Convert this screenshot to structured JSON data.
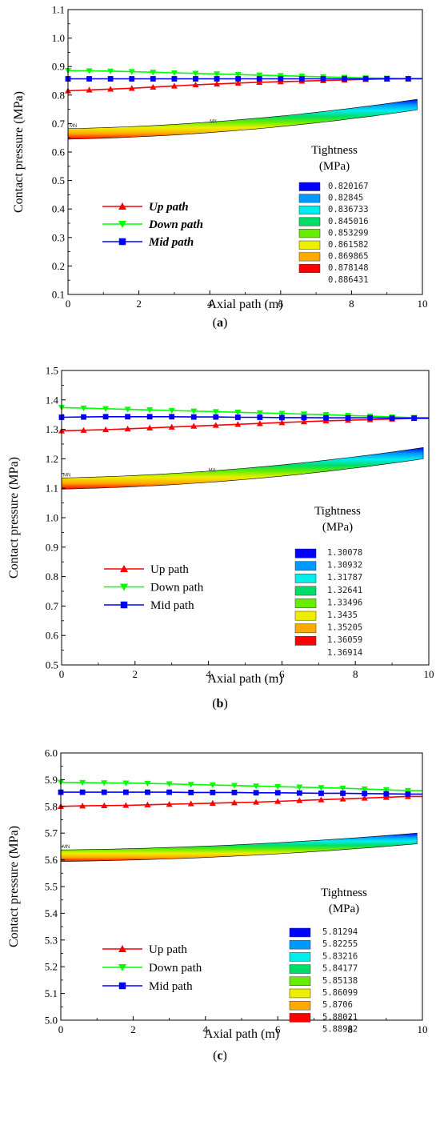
{
  "chart_data": [
    {
      "type": "line",
      "caption": "(a)",
      "caption_letter": "a",
      "xlabel": "Axial  path (m)",
      "ylabel": "Contact pressure (MPa)",
      "xlim": [
        0,
        10
      ],
      "ylim": [
        0.1,
        1.1
      ],
      "xticks": [
        "0",
        "2",
        "4",
        "6",
        "8",
        "10"
      ],
      "yticks": [
        "0.1",
        "0.2",
        "0.3",
        "0.4",
        "0.5",
        "0.6",
        "0.7",
        "0.8",
        "0.9",
        "1.0",
        "1.1"
      ],
      "legend_style": "bold-italic",
      "series": [
        {
          "name": "Up path",
          "color": "#ff0000",
          "marker": "triangle-up",
          "x": [
            0,
            0.6,
            1.2,
            1.8,
            2.4,
            3.0,
            3.6,
            4.2,
            4.8,
            5.4,
            6.0,
            6.6,
            7.2,
            7.8,
            8.4,
            9.0,
            9.6
          ],
          "y": [
            0.815,
            0.818,
            0.821,
            0.824,
            0.828,
            0.832,
            0.836,
            0.839,
            0.842,
            0.845,
            0.847,
            0.849,
            0.851,
            0.853,
            0.855,
            0.857,
            0.858
          ]
        },
        {
          "name": "Down path",
          "color": "#00ff00",
          "marker": "triangle-down",
          "x": [
            0,
            0.6,
            1.2,
            1.8,
            2.4,
            3.0,
            3.6,
            4.2,
            4.8,
            5.4,
            6.0,
            6.6,
            7.2,
            7.8,
            8.4,
            9.0,
            9.6
          ],
          "y": [
            0.886,
            0.885,
            0.884,
            0.882,
            0.88,
            0.878,
            0.876,
            0.874,
            0.872,
            0.87,
            0.868,
            0.866,
            0.864,
            0.862,
            0.86,
            0.859,
            0.858
          ]
        },
        {
          "name": "Mid path",
          "color": "#0000ff",
          "marker": "square",
          "x": [
            0,
            0.6,
            1.2,
            1.8,
            2.4,
            3.0,
            3.6,
            4.2,
            4.8,
            5.4,
            6.0,
            6.6,
            7.2,
            7.8,
            8.4,
            9.0,
            9.6
          ],
          "y": [
            0.857,
            0.857,
            0.857,
            0.857,
            0.857,
            0.857,
            0.857,
            0.857,
            0.857,
            0.857,
            0.857,
            0.857,
            0.857,
            0.857,
            0.857,
            0.857,
            0.857
          ]
        }
      ],
      "contour_band": {
        "x0": 0,
        "x1": 9.85,
        "top_start": 0.682,
        "top_end": 0.785,
        "bottom_start": 0.645,
        "bottom_end": 0.748,
        "label": "MN",
        "label2": "MX"
      },
      "contour_legend": {
        "title_line1": "Tightness",
        "title_line2": "(MPa)",
        "values": [
          "0.820167",
          "0.82845",
          "0.836733",
          "0.845016",
          "0.853299",
          "0.861582",
          "0.869865",
          "0.878148",
          "0.886431"
        ],
        "colors": [
          "#0000ff",
          "#0099ff",
          "#00eeee",
          "#00dd66",
          "#66ee00",
          "#eeee00",
          "#ffaa00",
          "#ff0000"
        ]
      }
    },
    {
      "type": "line",
      "caption": "(b)",
      "caption_letter": "b",
      "xlabel": "Axial  path (m)",
      "ylabel": "Contact pressure (MPa)",
      "xlim": [
        0,
        10
      ],
      "ylim": [
        0.5,
        1.5
      ],
      "xticks": [
        "0",
        "2",
        "4",
        "6",
        "8",
        "10"
      ],
      "yticks": [
        "0.5",
        "0.6",
        "0.7",
        "0.8",
        "0.9",
        "1.0",
        "1.1",
        "1.2",
        "1.3",
        "1.4",
        "1.5"
      ],
      "legend_style": "normal",
      "series": [
        {
          "name": "Up path",
          "color": "#ff0000",
          "marker": "triangle-up",
          "x": [
            0,
            0.6,
            1.2,
            1.8,
            2.4,
            3.0,
            3.6,
            4.2,
            4.8,
            5.4,
            6.0,
            6.6,
            7.2,
            7.8,
            8.4,
            9.0,
            9.6
          ],
          "y": [
            1.295,
            1.297,
            1.299,
            1.302,
            1.305,
            1.308,
            1.311,
            1.314,
            1.317,
            1.32,
            1.323,
            1.326,
            1.329,
            1.331,
            1.333,
            1.335,
            1.337
          ]
        },
        {
          "name": "Down path",
          "color": "#00ff00",
          "marker": "triangle-down",
          "x": [
            0,
            0.6,
            1.2,
            1.8,
            2.4,
            3.0,
            3.6,
            4.2,
            4.8,
            5.4,
            6.0,
            6.6,
            7.2,
            7.8,
            8.4,
            9.0,
            9.6
          ],
          "y": [
            1.374,
            1.372,
            1.37,
            1.368,
            1.366,
            1.364,
            1.362,
            1.36,
            1.358,
            1.356,
            1.354,
            1.352,
            1.35,
            1.347,
            1.345,
            1.342,
            1.34
          ]
        },
        {
          "name": "Mid path",
          "color": "#0000ff",
          "marker": "square",
          "x": [
            0,
            0.6,
            1.2,
            1.8,
            2.4,
            3.0,
            3.6,
            4.2,
            4.8,
            5.4,
            6.0,
            6.6,
            7.2,
            7.8,
            8.4,
            9.0,
            9.6
          ],
          "y": [
            1.341,
            1.342,
            1.343,
            1.343,
            1.343,
            1.343,
            1.342,
            1.342,
            1.341,
            1.341,
            1.34,
            1.34,
            1.339,
            1.339,
            1.339,
            1.338,
            1.338
          ]
        }
      ],
      "contour_band": {
        "x0": 0,
        "x1": 9.85,
        "top_start": 1.135,
        "top_end": 1.238,
        "bottom_start": 1.097,
        "bottom_end": 1.2,
        "label": "MN",
        "label2": "MX"
      },
      "contour_legend": {
        "title_line1": "Tightness",
        "title_line2": "(MPa)",
        "values": [
          "1.30078",
          "1.30932",
          "1.31787",
          "1.32641",
          "1.33496",
          "1.3435",
          "1.35205",
          "1.36059",
          "1.36914"
        ],
        "colors": [
          "#0000ff",
          "#0099ff",
          "#00eeee",
          "#00dd66",
          "#66ee00",
          "#eeee00",
          "#ffaa00",
          "#ff0000"
        ]
      }
    },
    {
      "type": "line",
      "caption": "(c)",
      "caption_letter": "c",
      "xlabel": "Axial  path (m)",
      "ylabel": "Contact   pressure (MPa)",
      "xlim": [
        0,
        10
      ],
      "ylim": [
        5.0,
        6.0
      ],
      "xticks": [
        "0",
        "2",
        "4",
        "6",
        "8",
        "10"
      ],
      "yticks": [
        "5.0",
        "5.1",
        "5.2",
        "5.3",
        "5.4",
        "5.5",
        "5.6",
        "5.7",
        "5.8",
        "5.9",
        "6.0"
      ],
      "legend_style": "normal",
      "series": [
        {
          "name": "Up path",
          "color": "#ff0000",
          "marker": "triangle-up",
          "x": [
            0,
            0.6,
            1.2,
            1.8,
            2.4,
            3.0,
            3.6,
            4.2,
            4.8,
            5.4,
            6.0,
            6.6,
            7.2,
            7.8,
            8.4,
            9.0,
            9.6
          ],
          "y": [
            5.8,
            5.802,
            5.803,
            5.804,
            5.806,
            5.808,
            5.81,
            5.812,
            5.814,
            5.816,
            5.819,
            5.822,
            5.825,
            5.828,
            5.831,
            5.834,
            5.837
          ]
        },
        {
          "name": "Down path",
          "color": "#00ff00",
          "marker": "triangle-down",
          "x": [
            0,
            0.6,
            1.2,
            1.8,
            2.4,
            3.0,
            3.6,
            4.2,
            4.8,
            5.4,
            6.0,
            6.6,
            7.2,
            7.8,
            8.4,
            9.0,
            9.6
          ],
          "y": [
            5.89,
            5.889,
            5.888,
            5.887,
            5.886,
            5.884,
            5.882,
            5.88,
            5.878,
            5.876,
            5.874,
            5.872,
            5.87,
            5.868,
            5.865,
            5.862,
            5.859
          ]
        },
        {
          "name": "Mid path",
          "color": "#0000ff",
          "marker": "square",
          "x": [
            0,
            0.6,
            1.2,
            1.8,
            2.4,
            3.0,
            3.6,
            4.2,
            4.8,
            5.4,
            6.0,
            6.6,
            7.2,
            7.8,
            8.4,
            9.0,
            9.6
          ],
          "y": [
            5.853,
            5.853,
            5.853,
            5.853,
            5.853,
            5.853,
            5.852,
            5.852,
            5.852,
            5.851,
            5.851,
            5.85,
            5.849,
            5.849,
            5.848,
            5.847,
            5.846
          ]
        }
      ],
      "contour_band": {
        "x0": 0,
        "x1": 9.85,
        "top_start": 5.637,
        "top_end": 5.7,
        "bottom_start": 5.594,
        "bottom_end": 5.66,
        "label": "MN",
        "label2": ""
      },
      "contour_legend": {
        "title_line1": "Tightness",
        "title_line2": "(MPa)",
        "values": [
          "5.81294",
          "5.82255",
          "5.83216",
          "5.84177",
          "5.85138",
          "5.86099",
          "5.8706",
          "5.88021",
          "5.88982"
        ],
        "colors": [
          "#0000ff",
          "#0099ff",
          "#00eeee",
          "#00dd66",
          "#66ee00",
          "#eeee00",
          "#ffaa00",
          "#ff0000"
        ]
      }
    }
  ]
}
